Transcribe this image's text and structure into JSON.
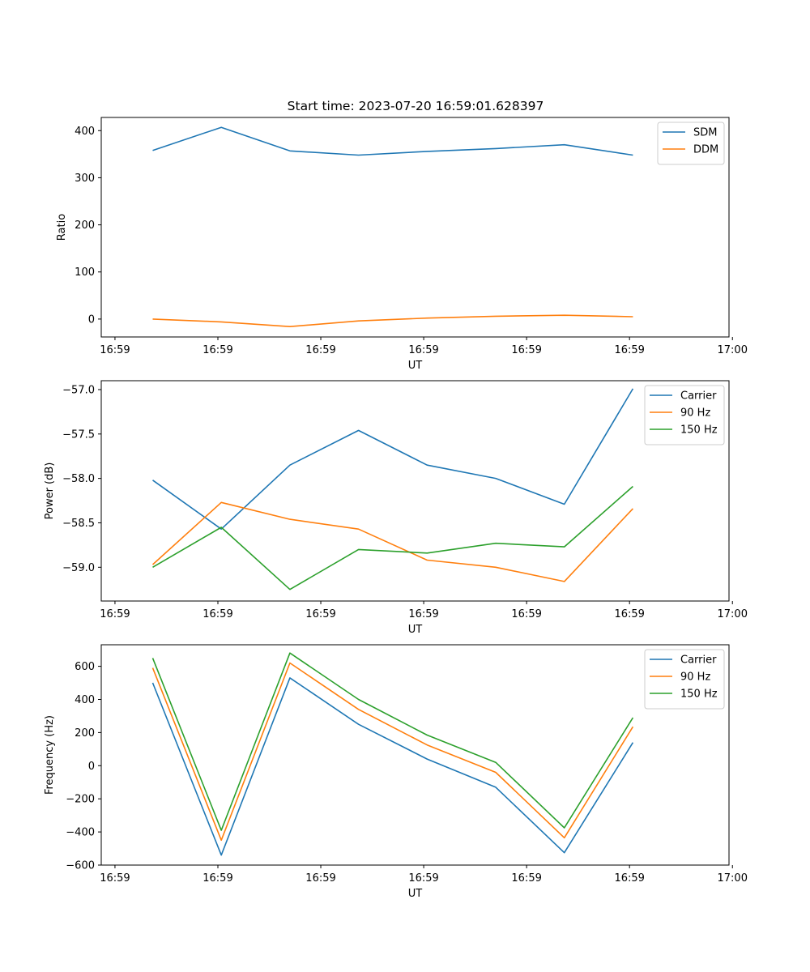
{
  "figure_title": "Start time: 2023-07-20 16:59:01.628397",
  "chart_data": [
    {
      "type": "line",
      "title": "Start time: 2023-07-20 16:59:01.628397",
      "xlabel": "UT",
      "ylabel": "Ratio",
      "x": [
        1,
        2,
        3,
        4,
        5,
        6,
        7,
        8
      ],
      "xlim": [
        0.25,
        9.4
      ],
      "x_ticks": [
        0.45,
        1.95,
        3.45,
        4.95,
        6.45,
        7.95,
        9.45
      ],
      "x_tick_labels": [
        "16:59",
        "16:59",
        "16:59",
        "16:59",
        "16:59",
        "16:59",
        "17:00"
      ],
      "ylim": [
        -38,
        428
      ],
      "y_ticks": [
        0,
        100,
        200,
        300,
        400
      ],
      "y_tick_labels": [
        "0",
        "100",
        "200",
        "300",
        "400"
      ],
      "legend_position": "top-right",
      "series": [
        {
          "name": "SDM",
          "color": "#1f77b4",
          "values": [
            358,
            407,
            357,
            348,
            356,
            362,
            370,
            348
          ]
        },
        {
          "name": "DDM",
          "color": "#ff7f0e",
          "values": [
            0,
            -6,
            -16,
            -4,
            2,
            6,
            8,
            5
          ]
        }
      ]
    },
    {
      "type": "line",
      "title": "",
      "xlabel": "UT",
      "ylabel": "Power (dB)",
      "x": [
        1,
        2,
        3,
        4,
        5,
        6,
        7,
        8
      ],
      "xlim": [
        0.25,
        9.4
      ],
      "x_ticks": [
        0.45,
        1.95,
        3.45,
        4.95,
        6.45,
        7.95,
        9.45
      ],
      "x_tick_labels": [
        "16:59",
        "16:59",
        "16:59",
        "16:59",
        "16:59",
        "16:59",
        "17:00"
      ],
      "ylim": [
        -59.38,
        -56.9
      ],
      "y_ticks": [
        -59.0,
        -58.5,
        -58.0,
        -57.5,
        -57.0
      ],
      "y_tick_labels": [
        "−59.0",
        "−58.5",
        "−58.0",
        "−57.5",
        "−57.0"
      ],
      "legend_position": "top-right",
      "series": [
        {
          "name": "Carrier",
          "color": "#1f77b4",
          "values": [
            -58.02,
            -58.57,
            -57.85,
            -57.46,
            -57.85,
            -58.0,
            -58.29,
            -56.99
          ]
        },
        {
          "name": "90 Hz",
          "color": "#ff7f0e",
          "values": [
            -58.97,
            -58.27,
            -58.46,
            -58.57,
            -58.92,
            -59.0,
            -59.16,
            -58.34
          ]
        },
        {
          "name": "150 Hz",
          "color": "#2ca02c",
          "values": [
            -59.0,
            -58.55,
            -59.25,
            -58.8,
            -58.84,
            -58.73,
            -58.77,
            -58.09
          ]
        }
      ]
    },
    {
      "type": "line",
      "title": "",
      "xlabel": "UT",
      "ylabel": "Frequency (Hz)",
      "x": [
        1,
        2,
        3,
        4,
        5,
        6,
        7,
        8
      ],
      "xlim": [
        0.25,
        9.4
      ],
      "x_ticks": [
        0.45,
        1.95,
        3.45,
        4.95,
        6.45,
        7.95,
        9.45
      ],
      "x_tick_labels": [
        "16:59",
        "16:59",
        "16:59",
        "16:59",
        "16:59",
        "16:59",
        "17:00"
      ],
      "ylim": [
        -600,
        730
      ],
      "y_ticks": [
        -600,
        -400,
        -200,
        0,
        200,
        400,
        600
      ],
      "y_tick_labels": [
        "−600",
        "−400",
        "−200",
        "0",
        "200",
        "400",
        "600"
      ],
      "legend_position": "top-right",
      "series": [
        {
          "name": "Carrier",
          "color": "#1f77b4",
          "values": [
            500,
            -540,
            530,
            250,
            40,
            -130,
            -525,
            140
          ]
        },
        {
          "name": "90 Hz",
          "color": "#ff7f0e",
          "values": [
            590,
            -450,
            620,
            340,
            125,
            -40,
            -435,
            235
          ]
        },
        {
          "name": "150 Hz",
          "color": "#2ca02c",
          "values": [
            650,
            -390,
            680,
            400,
            185,
            20,
            -375,
            290
          ]
        }
      ]
    }
  ]
}
